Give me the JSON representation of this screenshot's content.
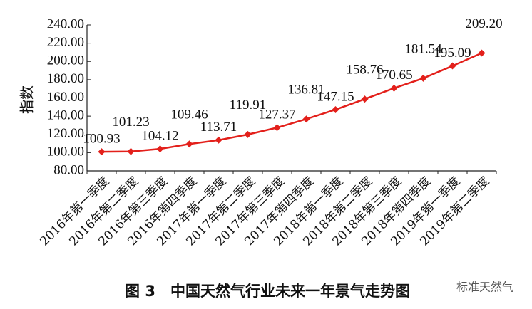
{
  "chart_data": {
    "type": "line",
    "y_label": "指数",
    "caption": "图 3　中国天然气行业未来一年景气走势图",
    "watermark": "标准天然气",
    "categories": [
      "2016年第一季度",
      "2016年第二季度",
      "2016年第三季度",
      "2016年第四季度",
      "2017年第一季度",
      "2017年第二季度",
      "2017年第三季度",
      "2017年第四季度",
      "2018年第一季度",
      "2018年第二季度",
      "2018年第三季度",
      "2018年第四季度",
      "2019年第一季度",
      "2019年第二季度"
    ],
    "values": [
      100.93,
      101.23,
      104.12,
      109.46,
      113.71,
      119.91,
      127.37,
      136.81,
      147.15,
      158.76,
      170.65,
      181.54,
      195.09,
      209.2
    ],
    "value_labels": [
      "100.93",
      "101.23",
      "104.12",
      "109.46",
      "113.71",
      "119.91",
      "127.37",
      "136.81",
      "147.15",
      "158.76",
      "170.65",
      "181.54",
      "195.09",
      "209.20"
    ],
    "color": "#e3201b",
    "ylim": [
      80,
      240
    ],
    "yticks": [
      {
        "value": 80,
        "label": "80.00"
      },
      {
        "value": 100,
        "label": "100.00"
      },
      {
        "value": 120,
        "label": "120.00"
      },
      {
        "value": 140,
        "label": "140.00"
      },
      {
        "value": 160,
        "label": "160.00"
      },
      {
        "value": 180,
        "label": "180.00"
      },
      {
        "value": 200,
        "label": "200.00"
      },
      {
        "value": 220,
        "label": "220.00"
      },
      {
        "value": 240,
        "label": "240.00"
      }
    ]
  }
}
